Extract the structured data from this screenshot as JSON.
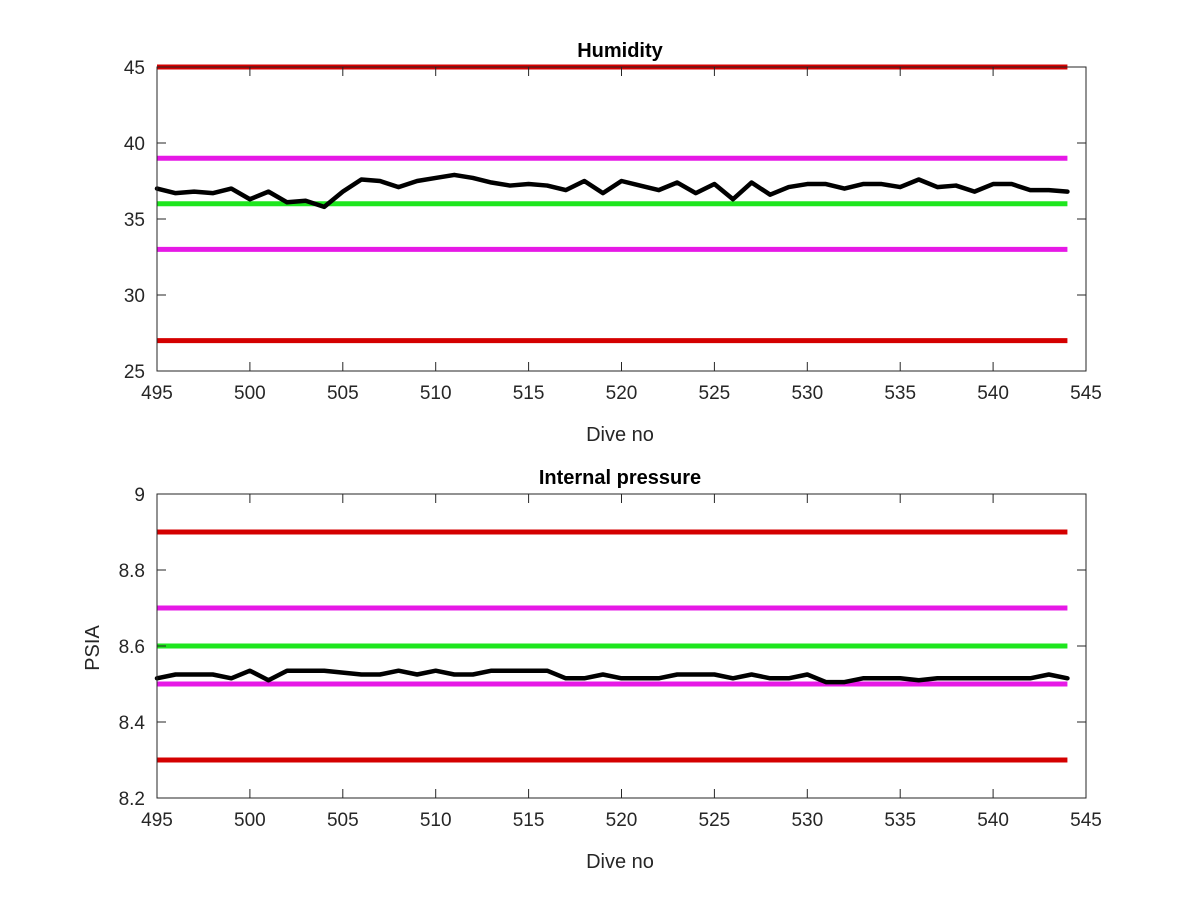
{
  "chart_data": [
    {
      "type": "line",
      "title": "Humidity",
      "xlabel": "Dive no",
      "ylabel": "",
      "xlim": [
        495,
        545
      ],
      "ylim": [
        25,
        45
      ],
      "xticks": [
        495,
        500,
        505,
        510,
        515,
        520,
        525,
        530,
        535,
        540,
        545
      ],
      "yticks": [
        25,
        30,
        35,
        40,
        45
      ],
      "grid": false,
      "legend": "none",
      "reference_lines": [
        {
          "y": 45,
          "color": "#d40000"
        },
        {
          "y": 39,
          "color": "#e619e6"
        },
        {
          "y": 36,
          "color": "#1ee61e"
        },
        {
          "y": 33,
          "color": "#e619e6"
        },
        {
          "y": 27,
          "color": "#d40000"
        }
      ],
      "series": [
        {
          "color": "#000000",
          "x": [
            495,
            496,
            497,
            498,
            499,
            500,
            501,
            502,
            503,
            504,
            505,
            506,
            507,
            508,
            509,
            510,
            511,
            512,
            513,
            514,
            515,
            516,
            517,
            518,
            519,
            520,
            521,
            522,
            523,
            524,
            525,
            526,
            527,
            528,
            529,
            530,
            531,
            532,
            533,
            534,
            535,
            536,
            537,
            538,
            539,
            540,
            541,
            542,
            543,
            544
          ],
          "values": [
            37.0,
            36.7,
            36.8,
            36.7,
            37.0,
            36.3,
            36.8,
            36.1,
            36.2,
            35.8,
            36.8,
            37.6,
            37.5,
            37.1,
            37.5,
            37.7,
            37.9,
            37.7,
            37.4,
            37.2,
            37.3,
            37.2,
            36.9,
            37.5,
            36.7,
            37.5,
            37.2,
            36.9,
            37.4,
            36.7,
            37.3,
            36.3,
            37.4,
            36.6,
            37.1,
            37.3,
            37.3,
            37.0,
            37.3,
            37.3,
            37.1,
            37.6,
            37.1,
            37.2,
            36.8,
            37.3,
            37.3,
            36.9,
            36.9,
            36.8
          ]
        }
      ]
    },
    {
      "type": "line",
      "title": "Internal pressure",
      "xlabel": "Dive no",
      "ylabel": "PSIA",
      "xlim": [
        495,
        545
      ],
      "ylim": [
        8.2,
        9
      ],
      "xticks": [
        495,
        500,
        505,
        510,
        515,
        520,
        525,
        530,
        535,
        540,
        545
      ],
      "yticks": [
        8.2,
        8.4,
        8.6,
        8.8,
        9
      ],
      "grid": false,
      "legend": "none",
      "reference_lines": [
        {
          "y": 8.9,
          "color": "#d40000"
        },
        {
          "y": 8.7,
          "color": "#e619e6"
        },
        {
          "y": 8.6,
          "color": "#1ee61e"
        },
        {
          "y": 8.5,
          "color": "#e619e6"
        },
        {
          "y": 8.3,
          "color": "#d40000"
        }
      ],
      "series": [
        {
          "color": "#000000",
          "x": [
            495,
            496,
            497,
            498,
            499,
            500,
            501,
            502,
            503,
            504,
            505,
            506,
            507,
            508,
            509,
            510,
            511,
            512,
            513,
            514,
            515,
            516,
            517,
            518,
            519,
            520,
            521,
            522,
            523,
            524,
            525,
            526,
            527,
            528,
            529,
            530,
            531,
            532,
            533,
            534,
            535,
            536,
            537,
            538,
            539,
            540,
            541,
            542,
            543,
            544
          ],
          "values": [
            8.515,
            8.525,
            8.525,
            8.525,
            8.515,
            8.535,
            8.51,
            8.535,
            8.535,
            8.535,
            8.53,
            8.525,
            8.525,
            8.535,
            8.525,
            8.535,
            8.525,
            8.525,
            8.535,
            8.535,
            8.535,
            8.535,
            8.515,
            8.515,
            8.525,
            8.515,
            8.515,
            8.515,
            8.525,
            8.525,
            8.525,
            8.515,
            8.525,
            8.515,
            8.515,
            8.525,
            8.505,
            8.505,
            8.515,
            8.515,
            8.515,
            8.51,
            8.515,
            8.515,
            8.515,
            8.515,
            8.515,
            8.515,
            8.525,
            8.515
          ]
        }
      ]
    }
  ]
}
